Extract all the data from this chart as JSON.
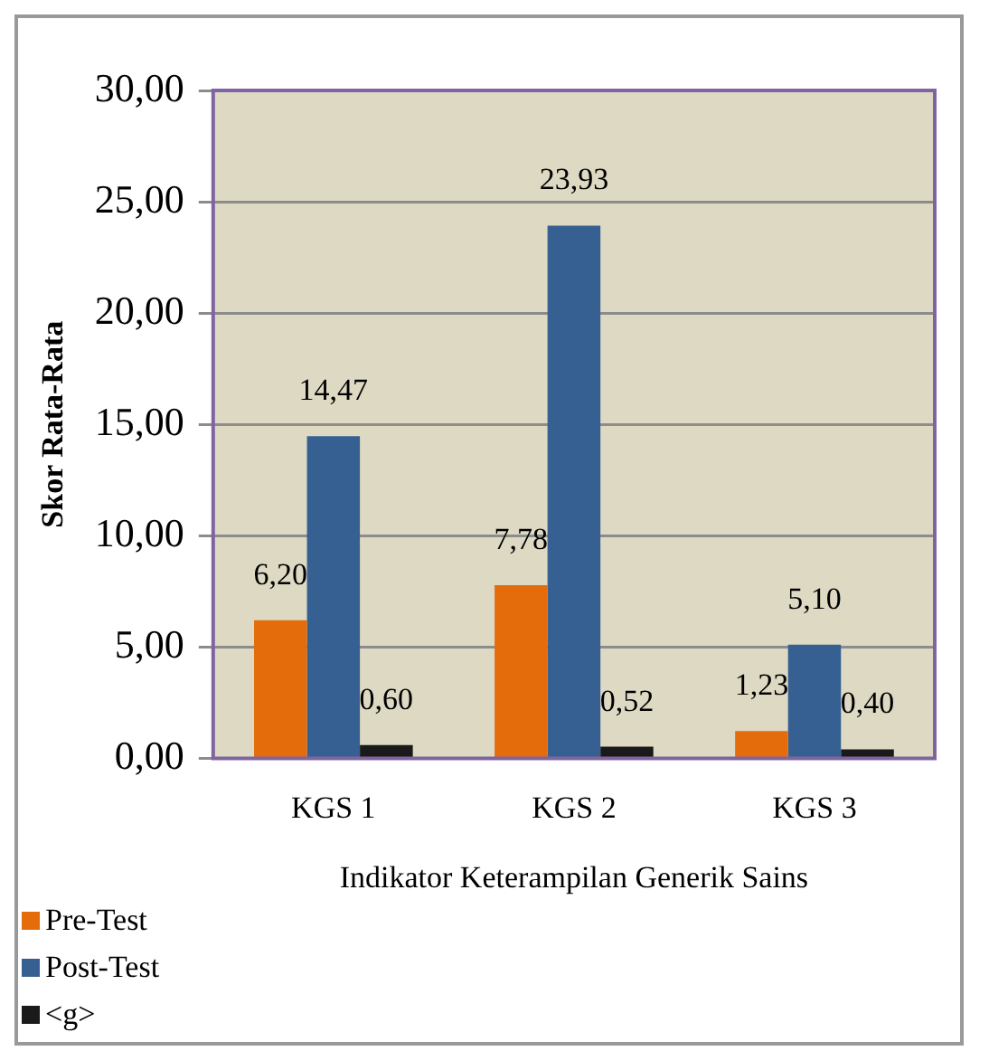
{
  "chart_data": {
    "type": "bar",
    "xlabel": "Indikator Keterampilan Generik Sains",
    "ylabel": "Skor Rata-Rata",
    "categories": [
      "KGS 1",
      "KGS 2",
      "KGS 3"
    ],
    "series": [
      {
        "name": "Pre-Test",
        "color": "#e46c0a",
        "values": [
          6.2,
          7.78,
          1.23
        ],
        "value_labels": [
          "6,20",
          "7,78",
          "1,23"
        ]
      },
      {
        "name": "Post-Test",
        "color": "#376092",
        "values": [
          14.47,
          23.93,
          5.1
        ],
        "value_labels": [
          "14,47",
          "23,93",
          "5,10"
        ]
      },
      {
        "name": "<g>",
        "color": "#1a1a1a",
        "values": [
          0.6,
          0.52,
          0.4
        ],
        "value_labels": [
          "0,60",
          "0,52",
          "0,40"
        ]
      }
    ],
    "ylim": [
      0,
      30
    ],
    "yticks": [
      {
        "value": 0,
        "label": "0,00"
      },
      {
        "value": 5,
        "label": "5,00"
      },
      {
        "value": 10,
        "label": "10,00"
      },
      {
        "value": 15,
        "label": "15,00"
      },
      {
        "value": 20,
        "label": "20,00"
      },
      {
        "value": 25,
        "label": "25,00"
      },
      {
        "value": 30,
        "label": "30,00"
      }
    ],
    "grid": "y",
    "legend": "bottom left"
  }
}
